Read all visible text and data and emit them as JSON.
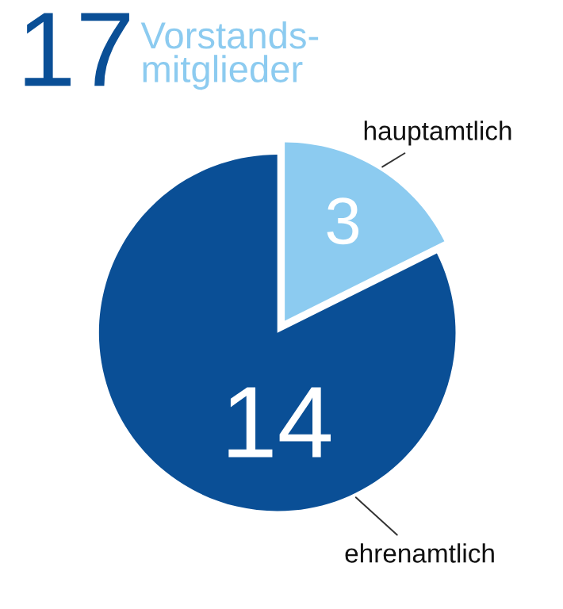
{
  "chart_data": {
    "type": "pie",
    "title": "17",
    "subtitle": "Vorstands-\nmitglieder",
    "categories": [
      "hauptamtlich",
      "ehrenamtlich"
    ],
    "values": [
      3,
      14
    ],
    "colors": [
      "#8ccbf0",
      "#0a4f96"
    ],
    "data_labels": true,
    "legend": false
  }
}
